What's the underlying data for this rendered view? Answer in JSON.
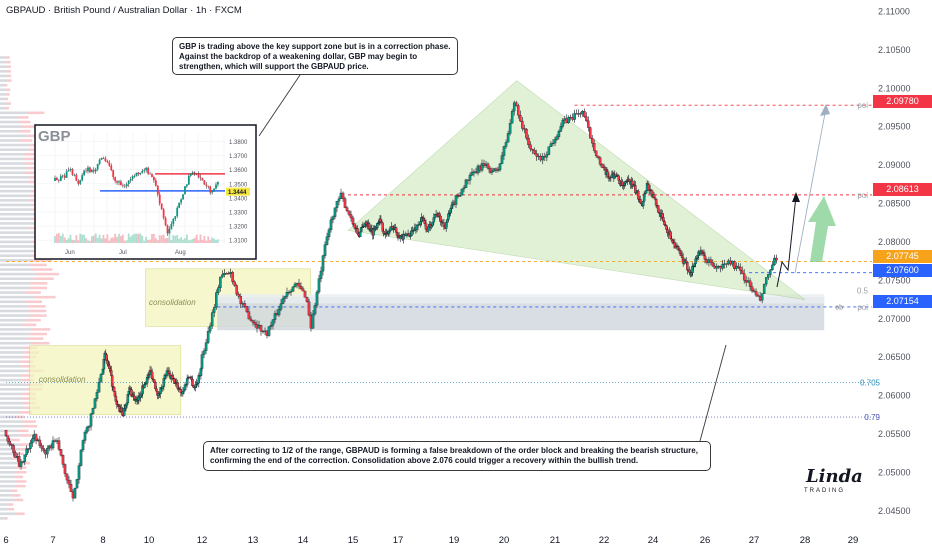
{
  "header": {
    "title": "GBPAUD · British Pound / Australian Dollar · 1h · FXCM"
  },
  "annotations": {
    "top_note": "GBP is trading above the key support zone but is in a correction phase. Against the backdrop of a weakening dollar, GBP may begin to strengthen, which will support the GBPAUD price.",
    "bottom_note": "After correcting to 1/2 of the range, GBPAUD is forming a false breakdown of the order block and breaking the bearish structure, confirming the end of the correction. Consolidation above 2.076 could trigger a recovery within the bullish trend.",
    "consolidation_label": "consolidation",
    "fib_labels": [
      "0.5",
      "0.705",
      "0.79"
    ],
    "poi_label": "poi",
    "ob_label": "ob"
  },
  "price_tags": [
    {
      "value": "2.09780",
      "color": "#f23645"
    },
    {
      "value": "2.08613",
      "color": "#f23645"
    },
    {
      "value": "2.07745",
      "color": "#f7a21b"
    },
    {
      "value": "2.07600",
      "color": "#2962ff"
    },
    {
      "value": "2.07154",
      "color": "#2962ff"
    }
  ],
  "logo": {
    "main": "Linda",
    "sub": "TRADING"
  },
  "colors": {
    "up": "#089981",
    "down": "#f23645",
    "zone": "#cfd6dd",
    "consol": "#f3f5bd",
    "wedge": "#c8e6b5"
  },
  "chart_data": {
    "type": "candlestick",
    "symbol": "GBPAUD",
    "timeframe": "1h",
    "ylim": [
      2.0425,
      2.1115
    ],
    "y_ticks": [
      "2.11000",
      "2.10500",
      "2.10000",
      "2.09500",
      "2.09000",
      "2.08500",
      "2.08000",
      "2.07500",
      "2.07000",
      "2.06500",
      "2.06000",
      "2.05500",
      "2.05000",
      "2.04500"
    ],
    "x_ticks": [
      {
        "label": "6",
        "day": 6
      },
      {
        "label": "7",
        "day": 7
      },
      {
        "label": "8",
        "day": 8
      },
      {
        "label": "10",
        "day": 10
      },
      {
        "label": "12",
        "day": 12
      },
      {
        "label": "13",
        "day": 13
      },
      {
        "label": "14",
        "day": 14
      },
      {
        "label": "15",
        "day": 15
      },
      {
        "label": "17",
        "day": 17
      },
      {
        "label": "19",
        "day": 19
      },
      {
        "label": "20",
        "day": 20
      },
      {
        "label": "21",
        "day": 21
      },
      {
        "label": "22",
        "day": 22
      },
      {
        "label": "24",
        "day": 24
      },
      {
        "label": "26",
        "day": 26
      },
      {
        "label": "27",
        "day": 27
      },
      {
        "label": "28",
        "day": 28
      },
      {
        "label": "29",
        "day": 29
      }
    ],
    "price_path": [
      [
        6.0,
        2.0555
      ],
      [
        6.35,
        2.0508
      ],
      [
        6.6,
        2.0548
      ],
      [
        6.9,
        2.0525
      ],
      [
        7.1,
        2.0545
      ],
      [
        7.3,
        2.0495
      ],
      [
        7.45,
        2.0462
      ],
      [
        7.6,
        2.0532
      ],
      [
        7.8,
        2.0572
      ],
      [
        7.95,
        2.0615
      ],
      [
        8.1,
        2.0655
      ],
      [
        8.35,
        2.063
      ],
      [
        8.6,
        2.059
      ],
      [
        8.9,
        2.0575
      ],
      [
        9.2,
        2.0608
      ],
      [
        9.5,
        2.059
      ],
      [
        9.8,
        2.0612
      ],
      [
        10.1,
        2.0632
      ],
      [
        10.4,
        2.06
      ],
      [
        10.7,
        2.063
      ],
      [
        11.0,
        2.0618
      ],
      [
        11.3,
        2.0603
      ],
      [
        11.55,
        2.0628
      ],
      [
        11.75,
        2.061
      ],
      [
        11.95,
        2.0625
      ],
      [
        12.15,
        2.068
      ],
      [
        12.4,
        2.0755
      ],
      [
        12.6,
        2.076
      ],
      [
        12.8,
        2.072
      ],
      [
        13.0,
        2.07
      ],
      [
        13.3,
        2.068
      ],
      [
        13.5,
        2.0705
      ],
      [
        13.7,
        2.0735
      ],
      [
        13.9,
        2.0745
      ],
      [
        14.1,
        2.073
      ],
      [
        14.2,
        2.069
      ],
      [
        14.35,
        2.0745
      ],
      [
        14.5,
        2.08
      ],
      [
        14.65,
        2.084
      ],
      [
        14.8,
        2.086
      ],
      [
        14.95,
        2.0838
      ],
      [
        15.1,
        2.082
      ],
      [
        15.3,
        2.0808
      ],
      [
        15.6,
        2.0828
      ],
      [
        15.9,
        2.0812
      ],
      [
        16.2,
        2.083
      ],
      [
        16.5,
        2.0808
      ],
      [
        16.8,
        2.082
      ],
      [
        17.2,
        2.0805
      ],
      [
        17.6,
        2.0815
      ],
      [
        17.9,
        2.083
      ],
      [
        18.1,
        2.0815
      ],
      [
        18.4,
        2.0838
      ],
      [
        18.7,
        2.082
      ],
      [
        19.0,
        2.0848
      ],
      [
        19.3,
        2.088
      ],
      [
        19.6,
        2.09
      ],
      [
        19.9,
        2.089
      ],
      [
        20.1,
        2.0935
      ],
      [
        20.25,
        2.0985
      ],
      [
        20.4,
        2.095
      ],
      [
        20.6,
        2.0915
      ],
      [
        20.8,
        2.0908
      ],
      [
        21.0,
        2.0932
      ],
      [
        21.2,
        2.0955
      ],
      [
        21.45,
        2.0965
      ],
      [
        21.6,
        2.097
      ],
      [
        21.8,
        2.093
      ],
      [
        22.0,
        2.0895
      ],
      [
        22.2,
        2.0885
      ],
      [
        22.5,
        2.0888
      ],
      [
        22.8,
        2.0872
      ],
      [
        23.1,
        2.088
      ],
      [
        23.4,
        2.0862
      ],
      [
        23.6,
        2.085
      ],
      [
        23.8,
        2.0876
      ],
      [
        24.0,
        2.0862
      ],
      [
        24.3,
        2.0838
      ],
      [
        24.6,
        2.0815
      ],
      [
        24.9,
        2.0795
      ],
      [
        25.2,
        2.0775
      ],
      [
        25.5,
        2.076
      ],
      [
        25.8,
        2.0788
      ],
      [
        26.0,
        2.078
      ],
      [
        26.3,
        2.0765
      ],
      [
        26.55,
        2.0775
      ],
      [
        26.8,
        2.0758
      ],
      [
        27.0,
        2.0738
      ],
      [
        27.15,
        2.0722
      ],
      [
        27.3,
        2.0755
      ],
      [
        27.45,
        2.0776
      ]
    ],
    "levels": [
      {
        "price": 2.0978,
        "label": "poi",
        "color": "#f23645",
        "from_day": 21.4
      },
      {
        "price": 2.08613,
        "label": "poi",
        "color": "#f23645",
        "from_day": 14.9
      },
      {
        "price": 2.07745,
        "label": "",
        "color": "#f7a21b",
        "from_day": 6.0
      },
      {
        "price": 2.076,
        "label": "",
        "color": "#2962ff",
        "from_day": 26.9
      },
      {
        "price": 2.07154,
        "label": "poi",
        "color": "#2962ff",
        "from_day": 12.3
      },
      {
        "price": 2.0617,
        "label": "0.705",
        "color": "#4fa3c7",
        "from_day": 6.0
      },
      {
        "price": 2.0572,
        "label": "0.79",
        "color": "#6a6fc2",
        "from_day": 6.0
      }
    ],
    "zones": [
      {
        "kind": "consolidation",
        "x0": 6.5,
        "x1": 11.2,
        "y0": 2.0575,
        "y1": 2.0665
      },
      {
        "kind": "consolidation",
        "x0": 9.85,
        "x1": 14.15,
        "y0": 2.069,
        "y1": 2.0765
      },
      {
        "kind": "order_block",
        "x0": 12.3,
        "x1": 28.4,
        "y0": 2.0685,
        "y1": 2.0728
      },
      {
        "kind": "fib_zone",
        "x0": 12.3,
        "x1": 28.4,
        "y0": 2.072,
        "y1": 2.0732
      }
    ],
    "wedge": [
      [
        14.9,
        2.0815
      ],
      [
        20.25,
        2.101
      ],
      [
        28.0,
        2.0725
      ]
    ],
    "inset": {
      "title": "GBP",
      "y_ticks": [
        "1.3800",
        "1.3700",
        "1.3600",
        "1.3500",
        "1.3400",
        "1.3300",
        "1.3200",
        "1.3100"
      ],
      "x_labels": [
        "Jun",
        "Jul",
        "Aug"
      ],
      "last_price": "1.3444",
      "red_level": 1.357,
      "blue_level": 1.345,
      "ylim": [
        1.308,
        1.386
      ]
    }
  }
}
